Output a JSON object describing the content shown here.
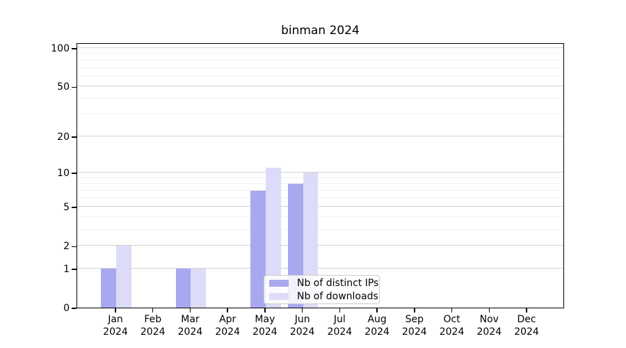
{
  "chart_data": {
    "type": "bar",
    "title": "binman 2024",
    "categories": [
      "Jan",
      "Feb",
      "Mar",
      "Apr",
      "May",
      "Jun",
      "Jul",
      "Aug",
      "Sep",
      "Oct",
      "Nov",
      "Dec"
    ],
    "year_label": "2024",
    "series": [
      {
        "name": "Nb of distinct IPs",
        "color": "#a8a8f0",
        "values": [
          1,
          0,
          1,
          0,
          7,
          8,
          0,
          0,
          0,
          0,
          0,
          0
        ]
      },
      {
        "name": "Nb of downloads",
        "color": "#dcdcf8",
        "values": [
          2,
          0,
          1,
          0,
          11,
          10,
          0,
          0,
          0,
          0,
          0,
          0
        ]
      }
    ],
    "y_axis": {
      "scale": "log1p",
      "tick_values": [
        0,
        1,
        2,
        5,
        10,
        20,
        50,
        100
      ],
      "tick_labels": [
        "0",
        "1",
        "2",
        "5",
        "10",
        "20",
        "50",
        "100"
      ],
      "minor_gridline_values": [
        3,
        4,
        6,
        7,
        8,
        9,
        30,
        40,
        60,
        70,
        80,
        90
      ],
      "range_max_value": 110
    },
    "xlabel": "",
    "ylabel": "",
    "grid": true,
    "legend_position": "inside-bottom-center",
    "colors": {
      "major_gridline": "#d2d2d2",
      "minor_gridline": "#efefef",
      "spine": "#000000",
      "background": "#ffffff"
    }
  }
}
